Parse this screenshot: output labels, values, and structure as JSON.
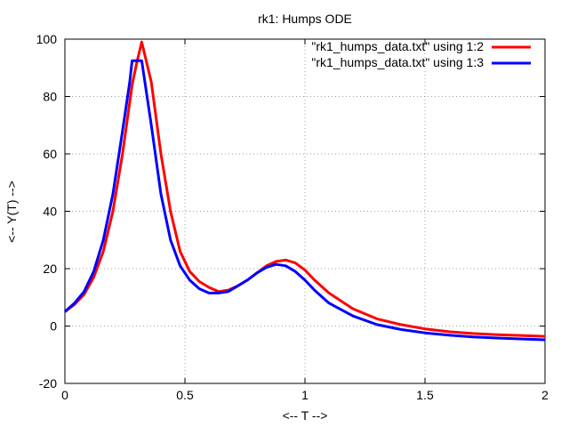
{
  "chart_data": {
    "type": "line",
    "title": "rk1: Humps ODE",
    "xlabel": "<-- T -->",
    "ylabel": "<-- Y(T) -->",
    "xlim": [
      0,
      2
    ],
    "ylim": [
      -20,
      100
    ],
    "xticks": [
      0,
      0.5,
      1,
      1.5,
      2
    ],
    "xtick_labels": [
      "0",
      "0.5",
      "1",
      "1.5",
      "2"
    ],
    "yticks": [
      -20,
      0,
      20,
      40,
      60,
      80,
      100
    ],
    "ytick_labels": [
      "-20",
      "0",
      "20",
      "40",
      "60",
      "80",
      "100"
    ],
    "grid": true,
    "legend_position": "top-right",
    "series": [
      {
        "name": "\"rk1_humps_data.txt\" using 1:2",
        "color": "#ff0000",
        "x": [
          0,
          0.04,
          0.08,
          0.12,
          0.16,
          0.2,
          0.24,
          0.28,
          0.3,
          0.32,
          0.36,
          0.4,
          0.44,
          0.48,
          0.52,
          0.56,
          0.6,
          0.64,
          0.68,
          0.72,
          0.76,
          0.8,
          0.84,
          0.88,
          0.92,
          0.96,
          1.0,
          1.04,
          1.1,
          1.2,
          1.3,
          1.4,
          1.5,
          1.6,
          1.7,
          1.8,
          1.9,
          2.0
        ],
        "y": [
          5,
          7.5,
          11,
          17,
          26,
          40,
          60,
          84,
          92,
          99,
          85,
          60,
          40,
          26,
          19,
          15.5,
          13.5,
          12,
          12.5,
          14,
          16,
          18.5,
          21,
          22.5,
          23,
          22,
          19.5,
          16,
          11.5,
          6,
          2.5,
          0.5,
          -1,
          -2,
          -2.6,
          -3,
          -3.3,
          -3.6
        ]
      },
      {
        "name": "\"rk1_humps_data.txt\" using 1:3",
        "color": "#0000ff",
        "x": [
          0,
          0.04,
          0.08,
          0.12,
          0.16,
          0.2,
          0.24,
          0.27,
          0.28,
          0.3,
          0.32,
          0.36,
          0.4,
          0.44,
          0.48,
          0.52,
          0.56,
          0.6,
          0.64,
          0.68,
          0.72,
          0.76,
          0.8,
          0.84,
          0.88,
          0.92,
          0.96,
          1.0,
          1.04,
          1.1,
          1.2,
          1.3,
          1.4,
          1.5,
          1.6,
          1.7,
          1.8,
          1.9,
          2.0
        ],
        "y": [
          5,
          8,
          12,
          19,
          30,
          46,
          68,
          85,
          92.5,
          92.5,
          92.5,
          70,
          46,
          30,
          21,
          16,
          13,
          11.5,
          11.5,
          12,
          14,
          16,
          18.5,
          20.5,
          21.5,
          21,
          19,
          16,
          12.5,
          8,
          3.5,
          0.5,
          -1.2,
          -2.4,
          -3.2,
          -3.8,
          -4.2,
          -4.5,
          -4.8
        ]
      }
    ]
  }
}
